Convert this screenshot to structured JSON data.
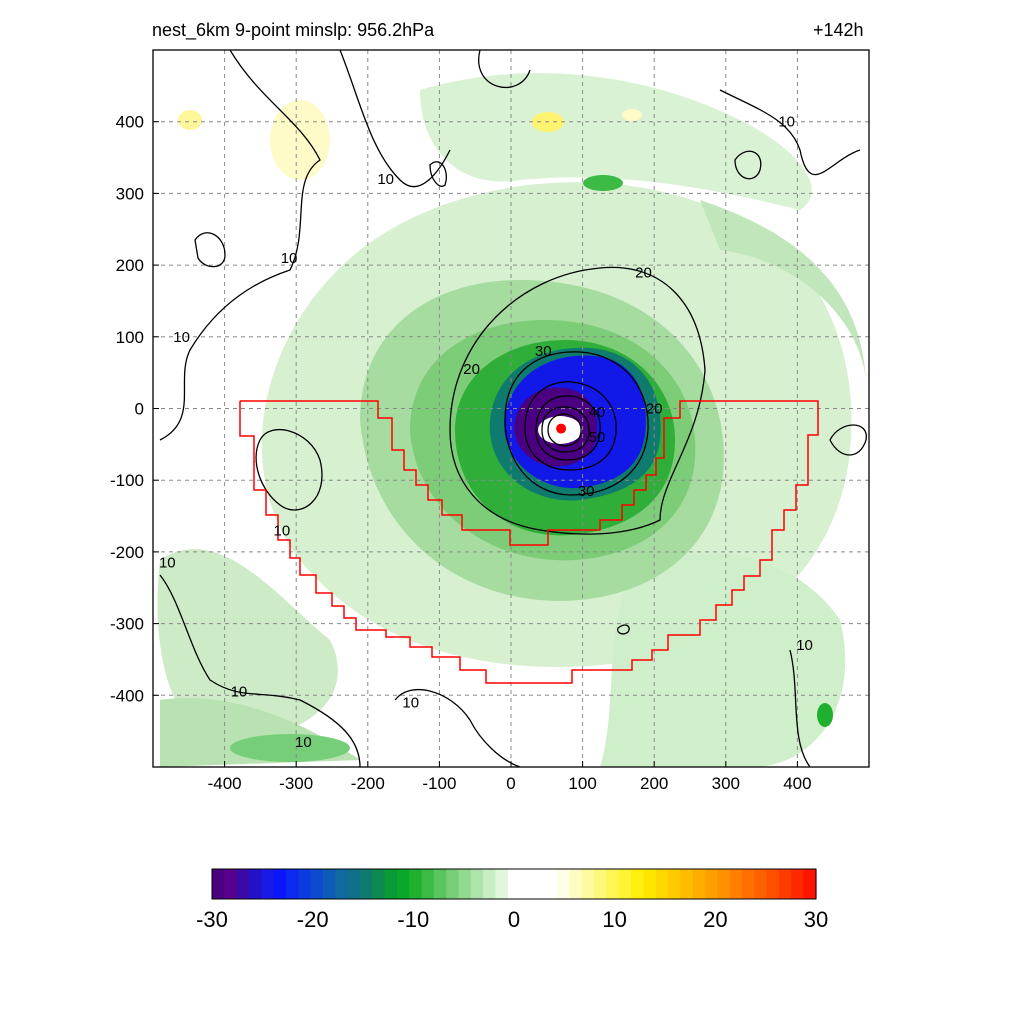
{
  "figure": {
    "title_left": "nest_6km  9-point minslp: 956.2hPa",
    "title_right": "+142h"
  },
  "chart_data": {
    "type": "heatmap",
    "title": "nest_6km  9-point minslp: 956.2hPa",
    "subtitle": "+142h",
    "xlabel": "",
    "ylabel": "",
    "xlim": [
      -500,
      500
    ],
    "ylim": [
      -500,
      500
    ],
    "x_ticks": [
      -400,
      -300,
      -200,
      -100,
      0,
      100,
      200,
      300,
      400
    ],
    "y_ticks": [
      -400,
      -300,
      -200,
      -100,
      0,
      100,
      200,
      300,
      400
    ],
    "grid": true,
    "storm_center": [
      70,
      -28
    ],
    "contour_levels": [
      10,
      20,
      30,
      40,
      50
    ],
    "contour_labels": [
      {
        "text": "10",
        "x": -175,
        "y": 320
      },
      {
        "text": "10",
        "x": -310,
        "y": 210
      },
      {
        "text": "10",
        "x": -460,
        "y": 100
      },
      {
        "text": "10",
        "x": -480,
        "y": -215
      },
      {
        "text": "10",
        "x": -380,
        "y": -395
      },
      {
        "text": "10",
        "x": -140,
        "y": -410
      },
      {
        "text": "10",
        "x": -290,
        "y": -465
      },
      {
        "text": "10",
        "x": -320,
        "y": -170
      },
      {
        "text": "10",
        "x": 385,
        "y": 400
      },
      {
        "text": "10",
        "x": 410,
        "y": -330
      },
      {
        "text": "20",
        "x": 185,
        "y": 190
      },
      {
        "text": "20",
        "x": -55,
        "y": 55
      },
      {
        "text": "20",
        "x": 200,
        "y": 0
      },
      {
        "text": "30",
        "x": 45,
        "y": 80
      },
      {
        "text": "30",
        "x": 105,
        "y": -115
      },
      {
        "text": "40",
        "x": 120,
        "y": -5
      },
      {
        "text": "50",
        "x": 120,
        "y": -40
      }
    ],
    "colorbar": {
      "min": -30,
      "max": 30,
      "tick_labels": [
        "-30",
        "-20",
        "-10",
        "0",
        "10",
        "20",
        "30"
      ],
      "tick_values": [
        -30,
        -20,
        -10,
        0,
        10,
        20,
        30
      ],
      "colors": [
        "#4b0082",
        "#5a008e",
        "#3a0aa6",
        "#2211c8",
        "#1a1ae6",
        "#0a16ff",
        "#0a2af0",
        "#0b3ae0",
        "#0d4ad0",
        "#0e5ab8",
        "#0f6aa0",
        "#10708a",
        "#0f7a6e",
        "#0d8a52",
        "#0a9a36",
        "#0aa82a",
        "#20b030",
        "#3cba46",
        "#5ac45e",
        "#76cf78",
        "#92da92",
        "#aee4ac",
        "#c8eec4",
        "#e2f6de",
        "#ffffff",
        "#ffffff",
        "#ffffff",
        "#ffffff",
        "#fffee6",
        "#fffcc2",
        "#fffa9e",
        "#fff87a",
        "#fff656",
        "#fff432",
        "#fff00e",
        "#ffe600",
        "#ffd800",
        "#ffca00",
        "#ffbc00",
        "#ffae00",
        "#ffa000",
        "#ff9000",
        "#ff8000",
        "#ff7000",
        "#ff6000",
        "#ff5000",
        "#ff3c00",
        "#ff2800",
        "#ff1400"
      ]
    }
  }
}
